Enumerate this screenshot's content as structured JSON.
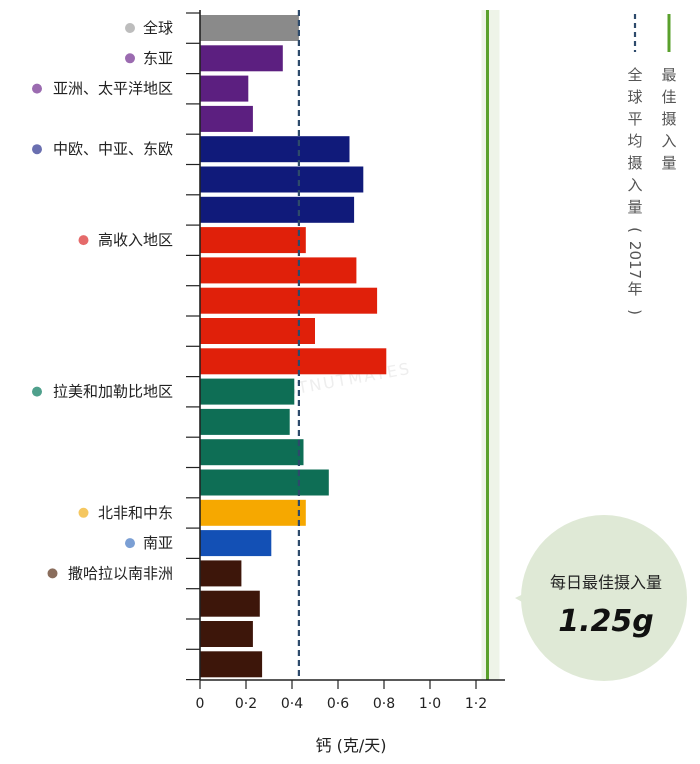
{
  "chart_data": {
    "type": "bar",
    "orientation": "horizontal",
    "xlabel": "钙 (克/天)",
    "xlim": [
      0,
      1.3
    ],
    "xticks": [
      "0",
      "0·2",
      "0·4",
      "0·6",
      "0·8",
      "1·0",
      "1·2"
    ],
    "tick_values": [
      0,
      0.2,
      0.4,
      0.6,
      0.8,
      1.0,
      1.2
    ],
    "groups": [
      {
        "name": "全球",
        "dot_color": "#bdbdbd",
        "bar_color": "#8a8a8a",
        "values": [
          0.43
        ]
      },
      {
        "name": "东亚",
        "dot_color": "#9b6bb0",
        "bar_color": "#5c1f80",
        "values": [
          0.36
        ]
      },
      {
        "name": "亚洲、太平洋地区",
        "dot_color": "#9b6bb0",
        "bar_color": "#5c1f80",
        "values": [
          0.21,
          0.23
        ]
      },
      {
        "name": "中欧、中亚、东欧",
        "dot_color": "#6a6fb0",
        "bar_color": "#101a7a",
        "values": [
          0.65,
          0.71,
          0.67
        ]
      },
      {
        "name": "高收入地区",
        "dot_color": "#e56a6a",
        "bar_color": "#e0200a",
        "values": [
          0.46,
          0.68,
          0.77,
          0.5,
          0.81
        ]
      },
      {
        "name": "拉美和加勒比地区",
        "dot_color": "#4fa08c",
        "bar_color": "#0e6e55",
        "values": [
          0.41,
          0.39,
          0.45,
          0.56
        ]
      },
      {
        "name": "北非和中东",
        "dot_color": "#f5c760",
        "bar_color": "#f6a800",
        "values": [
          0.46
        ]
      },
      {
        "name": "南亚",
        "dot_color": "#7b9fd4",
        "bar_color": "#1350b5",
        "values": [
          0.31
        ]
      },
      {
        "name": "撒哈拉以南非洲",
        "dot_color": "#8a6d5c",
        "bar_color": "#3d160a",
        "values": [
          0.18,
          0.26,
          0.23,
          0.27
        ]
      }
    ],
    "reference_lines": [
      {
        "name": "最佳摄入量",
        "value": 1.25,
        "style": "solid",
        "color": "#5aa02c"
      },
      {
        "name": "全球平均摄入量（2017年）",
        "value": 0.43,
        "style": "dashed",
        "color": "#2d4a6b"
      }
    ],
    "annotation": {
      "title": "每日最佳摄入量",
      "value": "1.25g",
      "fill": "#dfe9d6"
    }
  },
  "watermark": "CHESTNUTMATES"
}
